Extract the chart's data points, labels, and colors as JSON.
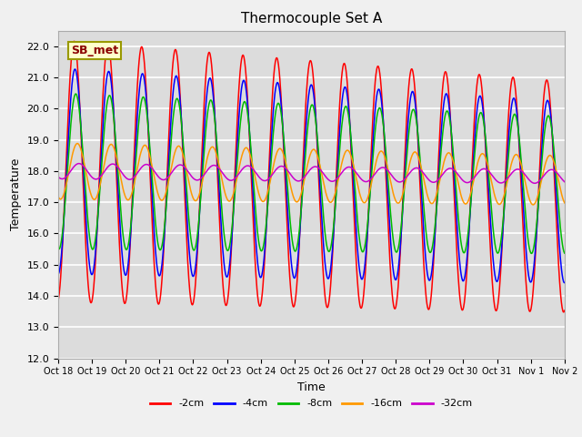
{
  "title": "Thermocouple Set A",
  "xlabel": "Time",
  "ylabel": "Temperature",
  "ylim": [
    12.0,
    22.5
  ],
  "yticks": [
    12.0,
    13.0,
    14.0,
    15.0,
    16.0,
    17.0,
    18.0,
    19.0,
    20.0,
    21.0,
    22.0
  ],
  "xtick_labels": [
    "Oct 18",
    "Oct 19",
    "Oct 20",
    "Oct 21",
    "Oct 22",
    "Oct 23",
    "Oct 24",
    "Oct 25",
    "Oct 26",
    "Oct 27",
    "Oct 28",
    "Oct 29",
    "Oct 30",
    "Oct 31",
    "Nov 1",
    "Nov 2"
  ],
  "annotation_text": "SB_met",
  "series_colors": [
    "#ff0000",
    "#0000ff",
    "#00bb00",
    "#ff9900",
    "#cc00cc"
  ],
  "series_labels": [
    "-2cm",
    "-4cm",
    "-8cm",
    "-16cm",
    "-32cm"
  ],
  "background_color": "#dcdcdc",
  "grid_color": "#ffffff",
  "num_days": 15,
  "base_temp": 18.0,
  "amplitude_2cm": 4.2,
  "amplitude_4cm": 3.3,
  "amplitude_8cm": 2.5,
  "amplitude_16cm": 0.9,
  "amplitude_32cm": 0.25,
  "phase_2cm": -1.4,
  "phase_4cm": -1.55,
  "phase_8cm": -1.7,
  "phase_16cm": -2.0,
  "phase_32cm": -2.3,
  "trend_2cm": -0.055,
  "trend_4cm": -0.045,
  "trend_8cm": -0.03,
  "trend_16cm": -0.02,
  "trend_32cm": -0.012
}
